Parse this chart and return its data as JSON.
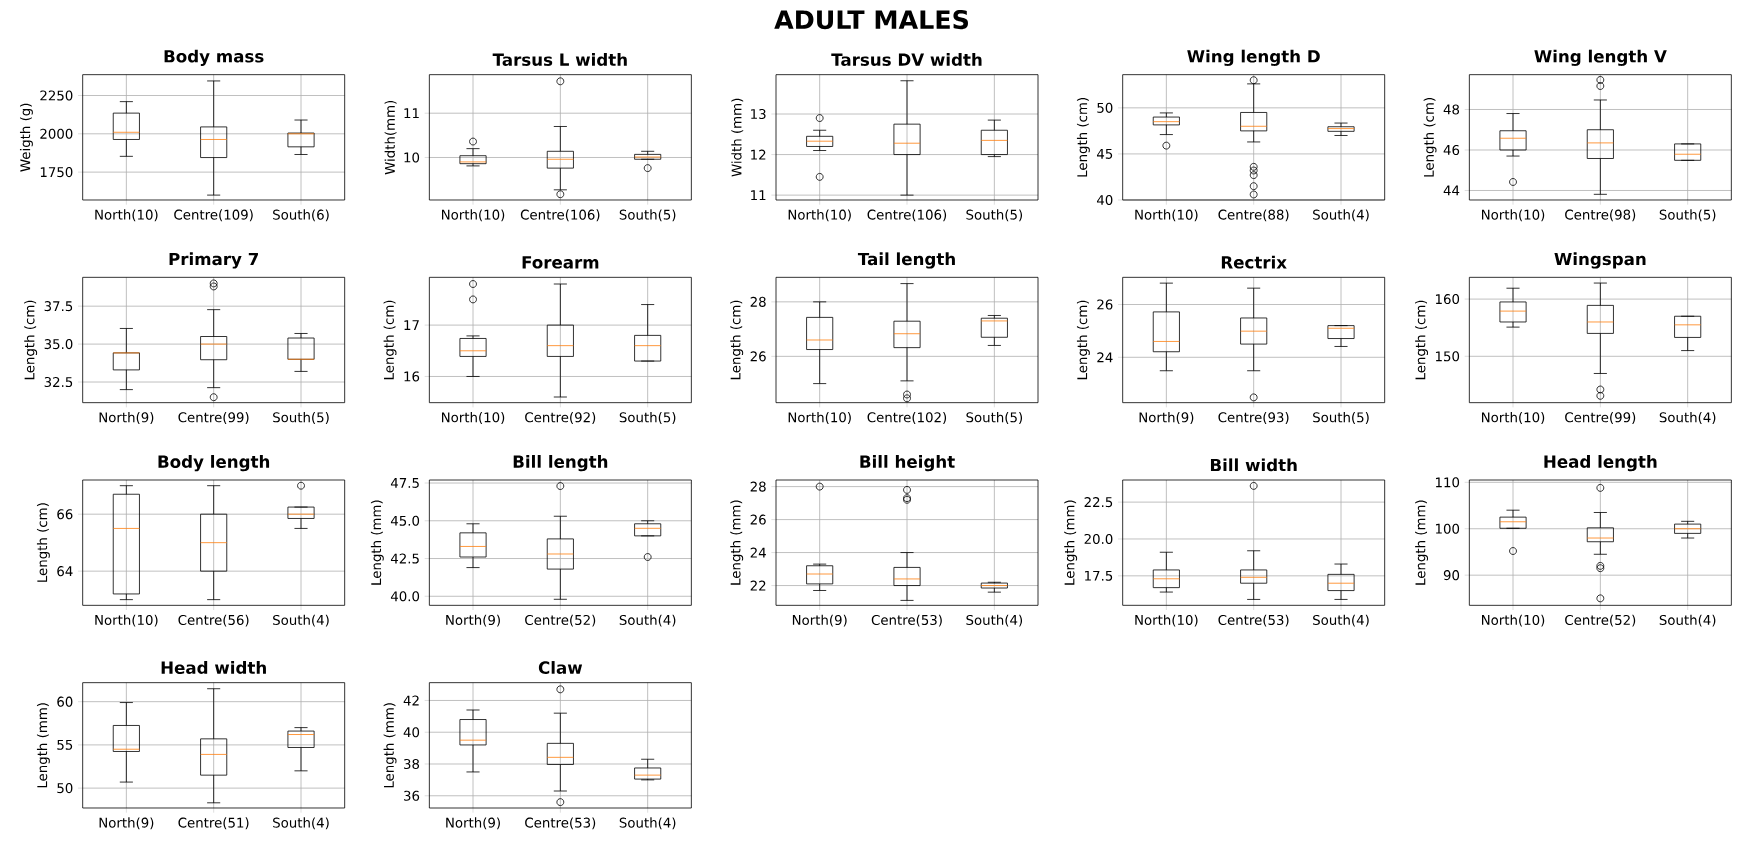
{
  "chart_data": [
    {
      "type": "other",
      "title": "ADULT MALES"
    },
    {
      "type": "box",
      "title": "Body mass",
      "ylabel": "Weigth (g)",
      "categories": [
        "North(10)",
        "Centre(109)",
        "South(6)"
      ],
      "ylim": [
        1568,
        2386
      ],
      "yticks": [
        1750,
        2000,
        2250
      ],
      "grid": true,
      "boxes": [
        {
          "low": 1853,
          "q1": 1963,
          "median": 2010,
          "q3": 2135,
          "high": 2210
        },
        {
          "low": 1600,
          "q1": 1845,
          "median": 1963,
          "q3": 2045,
          "high": 2345
        },
        {
          "low": 1865,
          "q1": 1915,
          "median": 2000,
          "q3": 2005,
          "high": 2090
        }
      ]
    },
    {
      "type": "box",
      "title": "Tarsus L width",
      "ylabel": "Width(mm)",
      "categories": [
        "North(10)",
        "Centre(106)",
        "South(5)"
      ],
      "ylim": [
        9.04,
        11.87
      ],
      "yticks": [
        10,
        11
      ],
      "grid": true,
      "boxes": [
        {
          "low": 9.81,
          "q1": 9.86,
          "median": 9.9,
          "q3": 10.04,
          "high": 10.2,
          "outliers": [
            10.36
          ]
        },
        {
          "low": 9.27,
          "q1": 9.76,
          "median": 9.96,
          "q3": 10.14,
          "high": 10.7,
          "outliers": [
            11.72,
            9.17
          ]
        },
        {
          "low": 9.96,
          "q1": 9.96,
          "median": 10.01,
          "q3": 10.07,
          "high": 10.14,
          "outliers": [
            9.76
          ]
        }
      ]
    },
    {
      "type": "box",
      "title": "Tarsus DV width",
      "ylabel": "Width (mm)",
      "categories": [
        "North(10)",
        "Centre(106)",
        "South(5)"
      ],
      "ylim": [
        10.88,
        13.97
      ],
      "yticks": [
        11,
        12,
        13
      ],
      "grid": true,
      "boxes": [
        {
          "low": 12.1,
          "q1": 12.2,
          "median": 12.33,
          "q3": 12.45,
          "high": 12.6,
          "outliers": [
            12.9,
            11.45
          ]
        },
        {
          "low": 11.0,
          "q1": 12.0,
          "median": 12.28,
          "q3": 12.75,
          "high": 13.82
        },
        {
          "low": 11.95,
          "q1": 12.0,
          "median": 12.35,
          "q3": 12.6,
          "high": 12.85
        }
      ]
    },
    {
      "type": "box",
      "title": "Wing length D",
      "ylabel": "Length (cm)",
      "categories": [
        "North(10)",
        "Centre(88)",
        "South(4)"
      ],
      "ylim": [
        40,
        53.6
      ],
      "yticks": [
        40,
        45,
        50
      ],
      "grid": true,
      "boxes": [
        {
          "low": 47.1,
          "q1": 48.15,
          "median": 48.5,
          "q3": 49.0,
          "high": 49.45,
          "outliers": [
            45.9
          ]
        },
        {
          "low": 46.3,
          "q1": 47.5,
          "median": 48.0,
          "q3": 49.5,
          "high": 52.6,
          "outliers": [
            53.0,
            43.6,
            43.2,
            42.7,
            41.5,
            40.6
          ]
        },
        {
          "low": 47.0,
          "q1": 47.45,
          "median": 47.75,
          "q3": 47.95,
          "high": 48.35
        }
      ]
    },
    {
      "type": "box",
      "title": "Wing length V",
      "ylabel": "Length (cm)",
      "categories": [
        "North(10)",
        "Centre(98)",
        "South(5)"
      ],
      "ylim": [
        43.53,
        49.72
      ],
      "yticks": [
        44,
        46,
        48
      ],
      "grid": true,
      "boxes": [
        {
          "low": 45.7,
          "q1": 46.0,
          "median": 46.58,
          "q3": 46.95,
          "high": 47.8,
          "outliers": [
            44.42
          ]
        },
        {
          "low": 43.81,
          "q1": 45.58,
          "median": 46.35,
          "q3": 47.0,
          "high": 48.47,
          "outliers": [
            49.16,
            49.46
          ]
        },
        {
          "low": 45.49,
          "q1": 45.49,
          "median": 45.79,
          "q3": 46.3,
          "high": 46.3
        }
      ]
    },
    {
      "type": "box",
      "title": "Primary 7",
      "ylabel": "Length (cm)",
      "categories": [
        "North(9)",
        "Centre(99)",
        "South(5)"
      ],
      "ylim": [
        31.14,
        39.4
      ],
      "yticks": [
        32.5,
        {
          "value": 35,
          "label": "35.0"
        },
        37.5
      ],
      "grid": true,
      "boxes": [
        {
          "low": 32.0,
          "q1": 33.3,
          "median": 34.42,
          "q3": 34.42,
          "high": 36.03
        },
        {
          "low": 32.13,
          "q1": 33.97,
          "median": 35.0,
          "q3": 35.5,
          "high": 37.27,
          "outliers": [
            38.8,
            39.0,
            31.5
          ]
        },
        {
          "low": 33.2,
          "q1": 34.0,
          "median": 34.0,
          "q3": 35.4,
          "high": 35.7
        }
      ]
    },
    {
      "type": "box",
      "title": "Forearm",
      "ylabel": "Length (cm)",
      "categories": [
        "North(10)",
        "Centre(92)",
        "South(5)"
      ],
      "ylim": [
        15.49,
        17.93
      ],
      "yticks": [
        16,
        17
      ],
      "grid": true,
      "boxes": [
        {
          "low": 16.0,
          "q1": 16.39,
          "median": 16.5,
          "q3": 16.74,
          "high": 16.79,
          "outliers": [
            17.5,
            17.8
          ]
        },
        {
          "low": 15.6,
          "q1": 16.39,
          "median": 16.6,
          "q3": 17.0,
          "high": 17.8
        },
        {
          "low": 16.3,
          "q1": 16.3,
          "median": 16.6,
          "q3": 16.8,
          "high": 17.4
        }
      ]
    },
    {
      "type": "box",
      "title": "Tail length",
      "ylabel": "Length (cm)",
      "categories": [
        "North(10)",
        "Centre(102)",
        "South(5)"
      ],
      "ylim": [
        24.3,
        28.9
      ],
      "yticks": [
        26,
        28
      ],
      "grid": true,
      "boxes": [
        {
          "low": 25.0,
          "q1": 26.25,
          "median": 26.6,
          "q3": 27.43,
          "high": 28.0
        },
        {
          "low": 25.1,
          "q1": 26.32,
          "median": 26.83,
          "q3": 27.29,
          "high": 28.67,
          "outliers": [
            24.6,
            24.46
          ]
        },
        {
          "low": 26.4,
          "q1": 26.7,
          "median": 27.3,
          "q3": 27.4,
          "high": 27.5
        }
      ]
    },
    {
      "type": "box",
      "title": "Rectrix",
      "ylabel": "Length (cm)",
      "categories": [
        "North(9)",
        "Centre(93)",
        "South(5)"
      ],
      "ylim": [
        22.28,
        27.03
      ],
      "yticks": [
        24,
        26
      ],
      "grid": true,
      "boxes": [
        {
          "low": 23.49,
          "q1": 24.21,
          "median": 24.6,
          "q3": 25.72,
          "high": 26.81
        },
        {
          "low": 23.49,
          "q1": 24.5,
          "median": 24.99,
          "q3": 25.49,
          "high": 26.62,
          "outliers": [
            22.48
          ]
        },
        {
          "low": 24.41,
          "q1": 24.71,
          "median": 25.1,
          "q3": 25.2,
          "high": 25.2
        }
      ]
    },
    {
      "type": "box",
      "title": "Wingspan",
      "ylabel": "Length (cm)",
      "categories": [
        "North(10)",
        "Centre(99)",
        "South(4)"
      ],
      "ylim": [
        141.9,
        163.8
      ],
      "yticks": [
        150,
        160
      ],
      "grid": true,
      "boxes": [
        {
          "low": 155.1,
          "q1": 156.0,
          "median": 157.9,
          "q3": 159.5,
          "high": 161.9
        },
        {
          "low": 147.0,
          "q1": 154.0,
          "median": 156.0,
          "q3": 158.9,
          "high": 162.8,
          "outliers": [
            144.2,
            143.1
          ]
        },
        {
          "low": 151.0,
          "q1": 153.3,
          "median": 155.5,
          "q3": 157.0,
          "high": 157.0
        }
      ]
    },
    {
      "type": "box",
      "title": "Body length",
      "ylabel": "Length (cm)",
      "categories": [
        "North(10)",
        "Centre(56)",
        "South(4)"
      ],
      "ylim": [
        62.8,
        67.2
      ],
      "yticks": [
        64,
        66
      ],
      "grid": true,
      "boxes": [
        {
          "low": 63.0,
          "q1": 63.2,
          "median": 65.5,
          "q3": 66.7,
          "high": 67.0
        },
        {
          "low": 63.0,
          "q1": 64.0,
          "median": 65.0,
          "q3": 66.0,
          "high": 67.0
        },
        {
          "low": 65.5,
          "q1": 65.85,
          "median": 66.0,
          "q3": 66.25,
          "high": 66.25,
          "outliers": [
            67.0
          ]
        }
      ]
    },
    {
      "type": "box",
      "title": "Bill length",
      "ylabel": "Length (mm)",
      "categories": [
        "North(9)",
        "Centre(52)",
        "South(4)"
      ],
      "ylim": [
        39.4,
        47.7
      ],
      "yticks": [
        {
          "value": 40,
          "label": "40.0"
        },
        42.5,
        {
          "value": 45,
          "label": "45.0"
        },
        47.5
      ],
      "grid": true,
      "boxes": [
        {
          "low": 41.9,
          "q1": 42.6,
          "median": 43.3,
          "q3": 44.2,
          "high": 44.8
        },
        {
          "low": 39.8,
          "q1": 41.8,
          "median": 42.8,
          "q3": 43.8,
          "high": 45.3,
          "outliers": [
            47.3
          ]
        },
        {
          "low": 44.0,
          "q1": 44.0,
          "median": 44.5,
          "q3": 44.8,
          "high": 45.0,
          "outliers": [
            42.6
          ]
        }
      ]
    },
    {
      "type": "box",
      "title": "Bill height",
      "ylabel": "Length (mm)",
      "categories": [
        "North(9)",
        "Centre(53)",
        "South(4)"
      ],
      "ylim": [
        20.8,
        28.4
      ],
      "yticks": [
        22,
        24,
        26,
        28
      ],
      "grid": true,
      "boxes": [
        {
          "low": 21.7,
          "q1": 22.1,
          "median": 22.7,
          "q3": 23.2,
          "high": 23.3,
          "outliers": [
            28.0
          ]
        },
        {
          "low": 21.1,
          "q1": 22.0,
          "median": 22.4,
          "q3": 23.1,
          "high": 24.0,
          "outliers": [
            27.8,
            27.3,
            27.2
          ]
        },
        {
          "low": 21.6,
          "q1": 21.85,
          "median": 22.0,
          "q3": 22.15,
          "high": 22.2
        }
      ]
    },
    {
      "type": "box",
      "title": "Bill width",
      "ylabel": "Length (mm)",
      "categories": [
        "North(10)",
        "Centre(53)",
        "South(4)"
      ],
      "ylim": [
        15.5,
        24.0
      ],
      "yticks": [
        17.5,
        {
          "value": 20,
          "label": "20.0"
        },
        22.5
      ],
      "grid": true,
      "boxes": [
        {
          "low": 16.4,
          "q1": 16.7,
          "median": 17.3,
          "q3": 17.9,
          "high": 19.1
        },
        {
          "low": 15.9,
          "q1": 17.0,
          "median": 17.4,
          "q3": 17.9,
          "high": 19.2,
          "outliers": [
            23.6
          ]
        },
        {
          "low": 15.9,
          "q1": 16.5,
          "median": 17.0,
          "q3": 17.6,
          "high": 18.3
        }
      ]
    },
    {
      "type": "box",
      "title": "Head length",
      "ylabel": "Length (mm)",
      "categories": [
        "North(10)",
        "Centre(52)",
        "South(4)"
      ],
      "ylim": [
        83.5,
        110.5
      ],
      "yticks": [
        90,
        100,
        110
      ],
      "grid": true,
      "boxes": [
        {
          "low": 100.1,
          "q1": 100.1,
          "median": 101.5,
          "q3": 102.5,
          "high": 104.0,
          "outliers": [
            95.2
          ]
        },
        {
          "low": 94.5,
          "q1": 97.2,
          "median": 98.0,
          "q3": 100.2,
          "high": 103.5,
          "outliers": [
            108.8,
            92.0,
            91.5,
            85.0
          ]
        },
        {
          "low": 98.0,
          "q1": 99.0,
          "median": 100.0,
          "q3": 101.0,
          "high": 101.6
        }
      ]
    },
    {
      "type": "box",
      "title": "Head width",
      "ylabel": "Length (mm)",
      "categories": [
        "North(9)",
        "Centre(51)",
        "South(4)"
      ],
      "ylim": [
        47.7,
        62.2
      ],
      "yticks": [
        50,
        55,
        60
      ],
      "grid": true,
      "boxes": [
        {
          "low": 50.7,
          "q1": 54.24,
          "median": 54.5,
          "q3": 57.25,
          "high": 59.9
        },
        {
          "low": 48.3,
          "q1": 51.5,
          "median": 53.9,
          "q3": 55.7,
          "high": 61.5
        },
        {
          "low": 52.0,
          "q1": 54.7,
          "median": 56.2,
          "q3": 56.6,
          "high": 57.0
        }
      ]
    },
    {
      "type": "box",
      "title": "Claw",
      "ylabel": "Length (mm)",
      "categories": [
        "North(9)",
        "Centre(53)",
        "South(4)"
      ],
      "ylim": [
        35.23,
        43.12
      ],
      "yticks": [
        36,
        38,
        40,
        42
      ],
      "grid": true,
      "boxes": [
        {
          "low": 37.5,
          "q1": 39.2,
          "median": 39.5,
          "q3": 40.8,
          "high": 41.4
        },
        {
          "low": 36.3,
          "q1": 37.97,
          "median": 38.42,
          "q3": 39.3,
          "high": 41.2,
          "outliers": [
            42.7,
            35.6
          ]
        },
        {
          "low": 37.0,
          "q1": 37.05,
          "median": 37.3,
          "q3": 37.75,
          "high": 38.3
        }
      ]
    }
  ]
}
